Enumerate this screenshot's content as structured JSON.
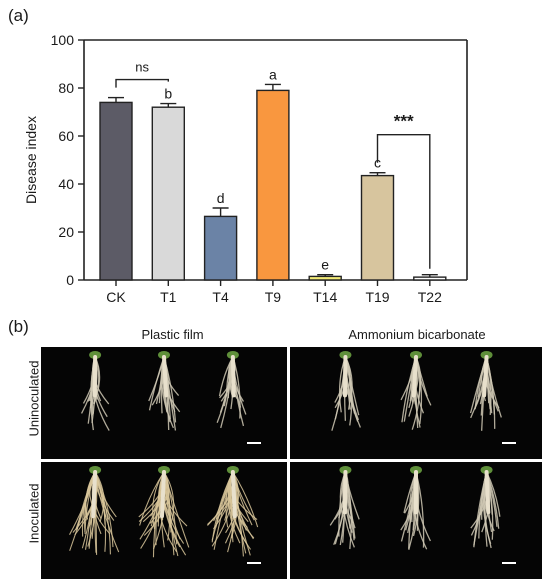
{
  "panel_a_label": "(a)",
  "panel_b_label": "(b)",
  "chart_data": {
    "type": "bar",
    "categories": [
      "CK",
      "T1",
      "T4",
      "T9",
      "T14",
      "T19",
      "T22"
    ],
    "values": [
      74,
      72,
      26.5,
      79,
      1.5,
      43.5,
      1.2
    ],
    "errors": [
      2,
      1.5,
      3.5,
      2.5,
      0.7,
      1.2,
      1.0
    ],
    "colors": [
      "#5c5b66",
      "#d9d9d9",
      "#6b83a6",
      "#f9973f",
      "#f2ea78",
      "#d7c59e",
      "#ffffff"
    ],
    "letters": [
      "",
      "b",
      "d",
      "a",
      "e",
      "c",
      ""
    ],
    "xlabel": "",
    "ylabel": "Disease index",
    "ylim": [
      0,
      100
    ],
    "yticks": [
      0,
      20,
      40,
      60,
      80,
      100
    ],
    "annotations": [
      {
        "text": "ns",
        "from": "CK",
        "to": "T1"
      },
      {
        "text": "***",
        "from": "T19",
        "to": "T22"
      }
    ]
  },
  "photo_grid": {
    "columns": [
      "Plastic film",
      "Ammonium bicarbonate"
    ],
    "rows": [
      "Uninoculated",
      "Inoculated"
    ]
  }
}
